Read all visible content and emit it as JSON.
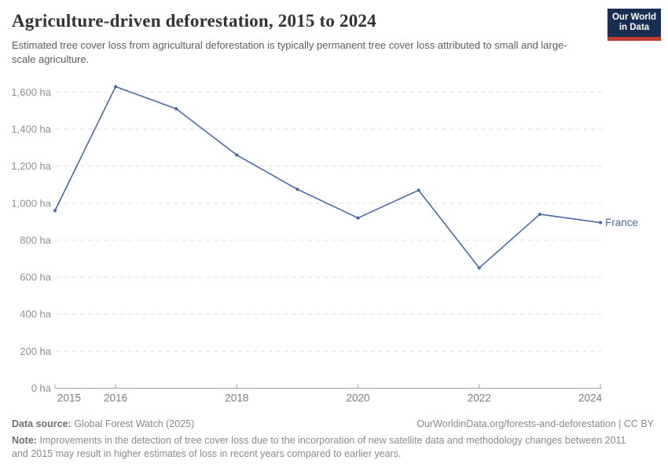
{
  "header": {
    "title": "Agriculture-driven deforestation, 2015 to 2024",
    "subtitle": "Estimated tree cover loss from agricultural deforestation is typically permanent tree cover loss attributed to small and large-scale agriculture.",
    "logo": {
      "line1": "Our World",
      "line2": "in Data",
      "bg_color": "#1a2e54",
      "accent_color": "#c1392f"
    }
  },
  "chart_data": {
    "type": "line",
    "title": "Agriculture-driven deforestation, 2015 to 2024",
    "x": [
      2015,
      2016,
      2017,
      2018,
      2019,
      2020,
      2021,
      2022,
      2023,
      2024
    ],
    "series": [
      {
        "name": "France",
        "color": "#4a69a3",
        "values": [
          960,
          1630,
          1510,
          1260,
          1075,
          920,
          1070,
          650,
          940,
          895
        ]
      }
    ],
    "ylabel_suffix": " ha",
    "ylim": [
      0,
      1600
    ],
    "ytick_step": 200,
    "yticks": [
      0,
      200,
      400,
      600,
      800,
      1000,
      1200,
      1400,
      1600
    ],
    "xticks": [
      2015,
      2016,
      2018,
      2020,
      2022,
      2024
    ],
    "grid": "horizontal-dashed",
    "legend_position": "end-of-line",
    "colors": {
      "gridline": "#e0e0e0",
      "axis": "#9e9e9e",
      "y_tick_label": "#8f8f8f",
      "x_tick_label": "#7a7a7a"
    }
  },
  "footer": {
    "datasource_label": "Data source:",
    "datasource_value": " Global Forest Watch (2025)",
    "link": "OurWorldinData.org/forests-and-deforestation | CC BY",
    "note_label": "Note:",
    "note_value": " Improvements in the detection of tree cover loss due to the incorporation of new satellite data and methodology changes between 2011 and 2015 may result in higher estimates of loss in recent years compared to earlier years."
  }
}
